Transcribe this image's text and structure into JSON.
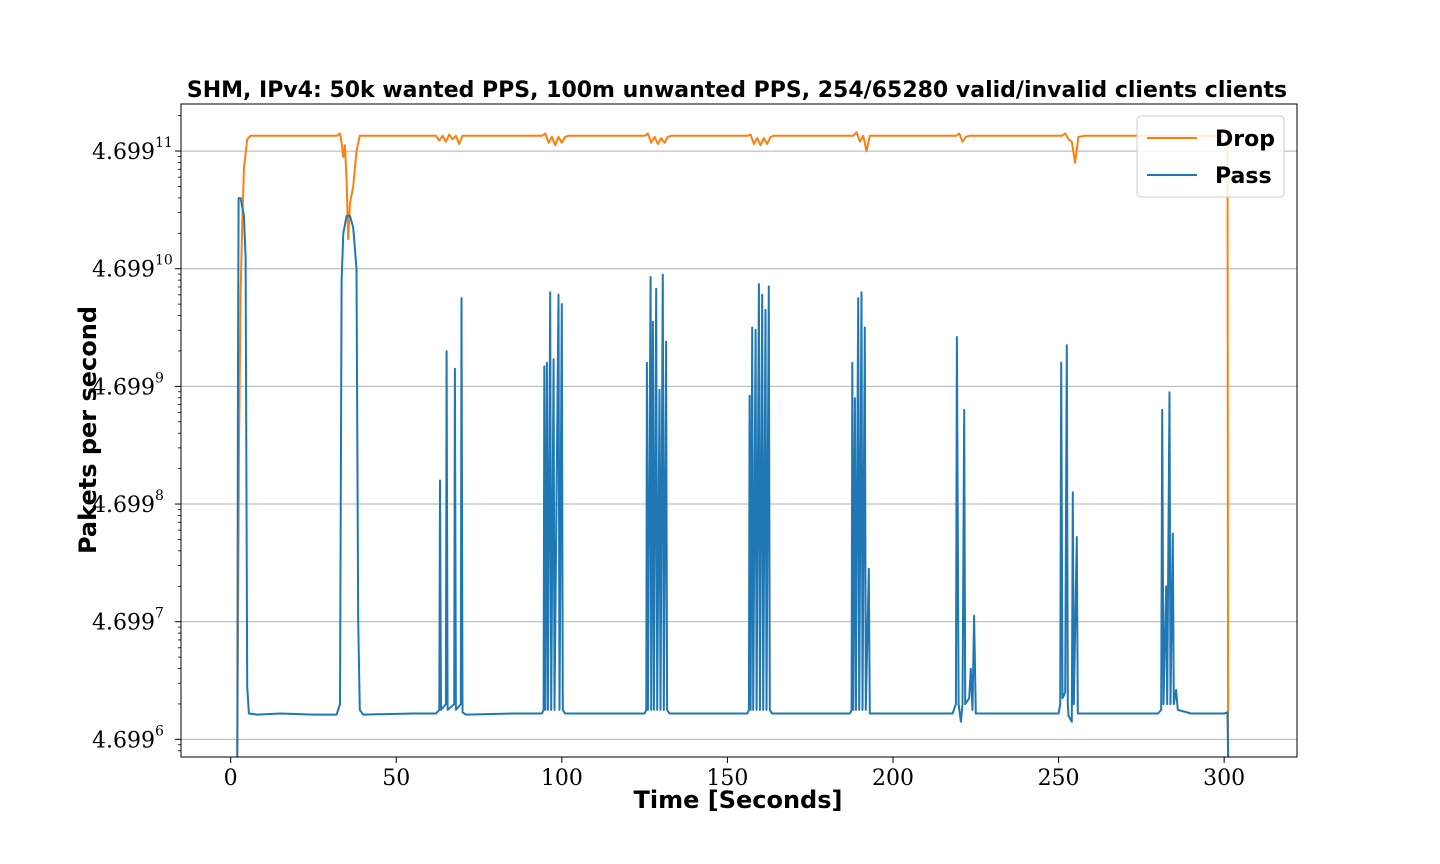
{
  "chart_data": {
    "type": "line",
    "title": "SHM, IPv4: 50k wanted PPS, 100m unwanted PPS, 254/65280 valid/invalid clients clients",
    "xlabel": "Time [Seconds]",
    "ylabel": "Pakets per second",
    "xlim": [
      -15,
      322
    ],
    "ylim": [
      5.85,
      11.4
    ],
    "y_scale": "log",
    "x_ticks": [
      0,
      50,
      100,
      150,
      200,
      250,
      300
    ],
    "y_ticks": [
      {
        "value": 6,
        "base": "4.699",
        "exp": "6"
      },
      {
        "value": 7,
        "base": "4.699",
        "exp": "7"
      },
      {
        "value": 8,
        "base": "4.699",
        "exp": "8"
      },
      {
        "value": 9,
        "base": "4.699",
        "exp": "9"
      },
      {
        "value": 10,
        "base": "4.699",
        "exp": "10"
      },
      {
        "value": 11,
        "base": "4.699",
        "exp": "11"
      }
    ],
    "grid": "horizontal",
    "legend_position": "top-right",
    "colors": {
      "Drop": "#ff7f0e",
      "Pass": "#1f77b4"
    },
    "series": [
      {
        "name": "Drop",
        "points": [
          [
            2,
            5.8
          ],
          [
            2.5,
            8.5
          ],
          [
            3,
            9.8
          ],
          [
            3.5,
            10.4
          ],
          [
            4,
            10.85
          ],
          [
            5,
            11.1
          ],
          [
            6,
            11.13
          ],
          [
            8,
            11.13
          ],
          [
            15,
            11.13
          ],
          [
            25,
            11.13
          ],
          [
            32,
            11.13
          ],
          [
            33,
            11.15
          ],
          [
            33.6,
            11.05
          ],
          [
            34,
            10.95
          ],
          [
            34.5,
            11.05
          ],
          [
            35,
            10.75
          ],
          [
            35.5,
            10.25
          ],
          [
            36,
            10.55
          ],
          [
            37,
            10.7
          ],
          [
            38,
            11.0
          ],
          [
            39,
            11.13
          ],
          [
            45,
            11.13
          ],
          [
            62,
            11.13
          ],
          [
            63,
            11.09
          ],
          [
            64,
            11.13
          ],
          [
            65,
            11.08
          ],
          [
            66,
            11.14
          ],
          [
            67,
            11.1
          ],
          [
            68,
            11.13
          ],
          [
            69,
            11.06
          ],
          [
            70,
            11.13
          ],
          [
            80,
            11.13
          ],
          [
            94,
            11.13
          ],
          [
            95,
            11.15
          ],
          [
            96,
            11.07
          ],
          [
            97,
            11.12
          ],
          [
            98,
            11.05
          ],
          [
            99,
            11.12
          ],
          [
            100,
            11.07
          ],
          [
            101,
            11.12
          ],
          [
            102,
            11.13
          ],
          [
            115,
            11.13
          ],
          [
            125,
            11.13
          ],
          [
            126,
            11.15
          ],
          [
            127,
            11.07
          ],
          [
            128,
            11.12
          ],
          [
            129,
            11.06
          ],
          [
            130,
            11.11
          ],
          [
            131,
            11.07
          ],
          [
            132,
            11.12
          ],
          [
            133,
            11.13
          ],
          [
            145,
            11.13
          ],
          [
            156,
            11.13
          ],
          [
            157,
            11.14
          ],
          [
            158,
            11.06
          ],
          [
            159,
            11.11
          ],
          [
            160,
            11.05
          ],
          [
            161,
            11.11
          ],
          [
            162,
            11.06
          ],
          [
            163,
            11.12
          ],
          [
            164,
            11.13
          ],
          [
            175,
            11.13
          ],
          [
            188,
            11.13
          ],
          [
            189,
            11.16
          ],
          [
            190,
            11.08
          ],
          [
            191,
            11.13
          ],
          [
            192,
            11.0
          ],
          [
            193,
            11.13
          ],
          [
            194,
            11.13
          ],
          [
            210,
            11.13
          ],
          [
            219,
            11.13
          ],
          [
            220,
            11.15
          ],
          [
            221,
            11.08
          ],
          [
            222,
            11.12
          ],
          [
            223,
            11.13
          ],
          [
            240,
            11.13
          ],
          [
            251,
            11.13
          ],
          [
            252,
            11.15
          ],
          [
            253,
            11.1
          ],
          [
            254,
            11.08
          ],
          [
            255,
            10.9
          ],
          [
            256,
            11.12
          ],
          [
            258,
            11.13
          ],
          [
            270,
            11.13
          ],
          [
            282,
            11.13
          ],
          [
            285,
            11.13
          ],
          [
            290,
            11.13
          ],
          [
            295,
            11.13
          ],
          [
            300,
            11.13
          ],
          [
            301,
            11.13
          ],
          [
            301.2,
            5.8
          ]
        ]
      },
      {
        "name": "Pass",
        "points": [
          [
            2,
            5.8
          ],
          [
            2.2,
            9.2
          ],
          [
            2.4,
            10.6
          ],
          [
            3,
            10.6
          ],
          [
            4,
            10.45
          ],
          [
            4.5,
            10.1
          ],
          [
            5,
            6.45
          ],
          [
            5.5,
            6.22
          ],
          [
            8,
            6.21
          ],
          [
            15,
            6.22
          ],
          [
            25,
            6.21
          ],
          [
            32,
            6.21
          ],
          [
            33,
            6.3
          ],
          [
            33.5,
            9.9
          ],
          [
            34,
            10.3
          ],
          [
            35,
            10.45
          ],
          [
            36,
            10.45
          ],
          [
            37,
            10.35
          ],
          [
            38,
            10.0
          ],
          [
            38.5,
            7.0
          ],
          [
            39,
            6.25
          ],
          [
            40,
            6.21
          ],
          [
            55,
            6.22
          ],
          [
            62,
            6.22
          ],
          [
            63,
            6.25
          ],
          [
            63.2,
            8.2
          ],
          [
            63.5,
            6.25
          ],
          [
            65,
            6.3
          ],
          [
            65.2,
            9.3
          ],
          [
            65.5,
            6.25
          ],
          [
            67.5,
            6.3
          ],
          [
            67.7,
            9.15
          ],
          [
            68,
            6.25
          ],
          [
            69.5,
            6.3
          ],
          [
            69.7,
            9.75
          ],
          [
            70,
            6.23
          ],
          [
            71,
            6.21
          ],
          [
            85,
            6.22
          ],
          [
            94,
            6.22
          ],
          [
            94.5,
            6.25
          ],
          [
            94.7,
            9.17
          ],
          [
            95,
            6.25
          ],
          [
            95.5,
            9.2
          ],
          [
            95.8,
            6.25
          ],
          [
            96.5,
            9.8
          ],
          [
            96.8,
            6.25
          ],
          [
            97.5,
            9.23
          ],
          [
            97.8,
            6.25
          ],
          [
            99,
            9.78
          ],
          [
            99.3,
            6.25
          ],
          [
            100,
            9.7
          ],
          [
            100.3,
            6.25
          ],
          [
            101,
            6.22
          ],
          [
            115,
            6.22
          ],
          [
            125,
            6.22
          ],
          [
            125.5,
            6.25
          ],
          [
            125.7,
            9.2
          ],
          [
            126,
            6.25
          ],
          [
            126.8,
            9.93
          ],
          [
            127,
            6.25
          ],
          [
            127.5,
            9.55
          ],
          [
            127.8,
            6.25
          ],
          [
            128.5,
            9.83
          ],
          [
            128.8,
            6.25
          ],
          [
            129.5,
            8.97
          ],
          [
            129.8,
            6.25
          ],
          [
            130.5,
            9.95
          ],
          [
            130.8,
            6.25
          ],
          [
            131.5,
            9.38
          ],
          [
            131.8,
            6.25
          ],
          [
            132.5,
            6.22
          ],
          [
            145,
            6.22
          ],
          [
            156,
            6.22
          ],
          [
            156.5,
            6.25
          ],
          [
            156.7,
            8.92
          ],
          [
            157,
            6.25
          ],
          [
            157.5,
            9.5
          ],
          [
            157.8,
            6.25
          ],
          [
            158.5,
            9.48
          ],
          [
            158.8,
            6.25
          ],
          [
            159.5,
            9.87
          ],
          [
            159.8,
            6.25
          ],
          [
            160.5,
            9.78
          ],
          [
            160.8,
            6.25
          ],
          [
            161.5,
            9.65
          ],
          [
            161.8,
            6.25
          ],
          [
            162.5,
            9.85
          ],
          [
            162.8,
            6.25
          ],
          [
            163.5,
            6.22
          ],
          [
            175,
            6.22
          ],
          [
            187,
            6.22
          ],
          [
            187.5,
            6.25
          ],
          [
            187.7,
            9.2
          ],
          [
            188,
            6.25
          ],
          [
            188.5,
            8.9
          ],
          [
            188.8,
            6.25
          ],
          [
            189.5,
            9.75
          ],
          [
            189.8,
            6.25
          ],
          [
            190.5,
            9.8
          ],
          [
            190.8,
            6.25
          ],
          [
            191.5,
            9.5
          ],
          [
            191.8,
            6.25
          ],
          [
            192.7,
            7.45
          ],
          [
            193,
            6.22
          ],
          [
            194,
            6.22
          ],
          [
            210,
            6.22
          ],
          [
            218,
            6.22
          ],
          [
            219,
            6.3
          ],
          [
            219.3,
            9.42
          ],
          [
            219.8,
            6.3
          ],
          [
            220.5,
            6.15
          ],
          [
            221,
            6.3
          ],
          [
            221.5,
            8.8
          ],
          [
            221.8,
            6.3
          ],
          [
            223,
            6.35
          ],
          [
            223.5,
            6.6
          ],
          [
            224,
            6.25
          ],
          [
            224.5,
            7.05
          ],
          [
            225,
            6.22
          ],
          [
            226,
            6.22
          ],
          [
            240,
            6.22
          ],
          [
            250,
            6.22
          ],
          [
            250.5,
            6.3
          ],
          [
            250.8,
            9.2
          ],
          [
            251.2,
            6.35
          ],
          [
            252,
            6.4
          ],
          [
            252.5,
            9.35
          ],
          [
            252.8,
            6.3
          ],
          [
            253,
            6.2
          ],
          [
            254,
            6.15
          ],
          [
            254.3,
            8.1
          ],
          [
            254.6,
            6.3
          ],
          [
            255.5,
            7.72
          ],
          [
            255.8,
            6.22
          ],
          [
            257,
            6.22
          ],
          [
            270,
            6.22
          ],
          [
            280,
            6.22
          ],
          [
            281,
            6.25
          ],
          [
            281.3,
            8.8
          ],
          [
            281.7,
            6.3
          ],
          [
            282.5,
            7.3
          ],
          [
            282.8,
            6.3
          ],
          [
            283.5,
            8.95
          ],
          [
            283.8,
            6.3
          ],
          [
            284.5,
            7.75
          ],
          [
            284.8,
            6.3
          ],
          [
            285.5,
            6.42
          ],
          [
            286,
            6.25
          ],
          [
            290,
            6.22
          ],
          [
            300,
            6.22
          ],
          [
            301,
            6.23
          ],
          [
            301.2,
            5.8
          ]
        ]
      }
    ]
  }
}
